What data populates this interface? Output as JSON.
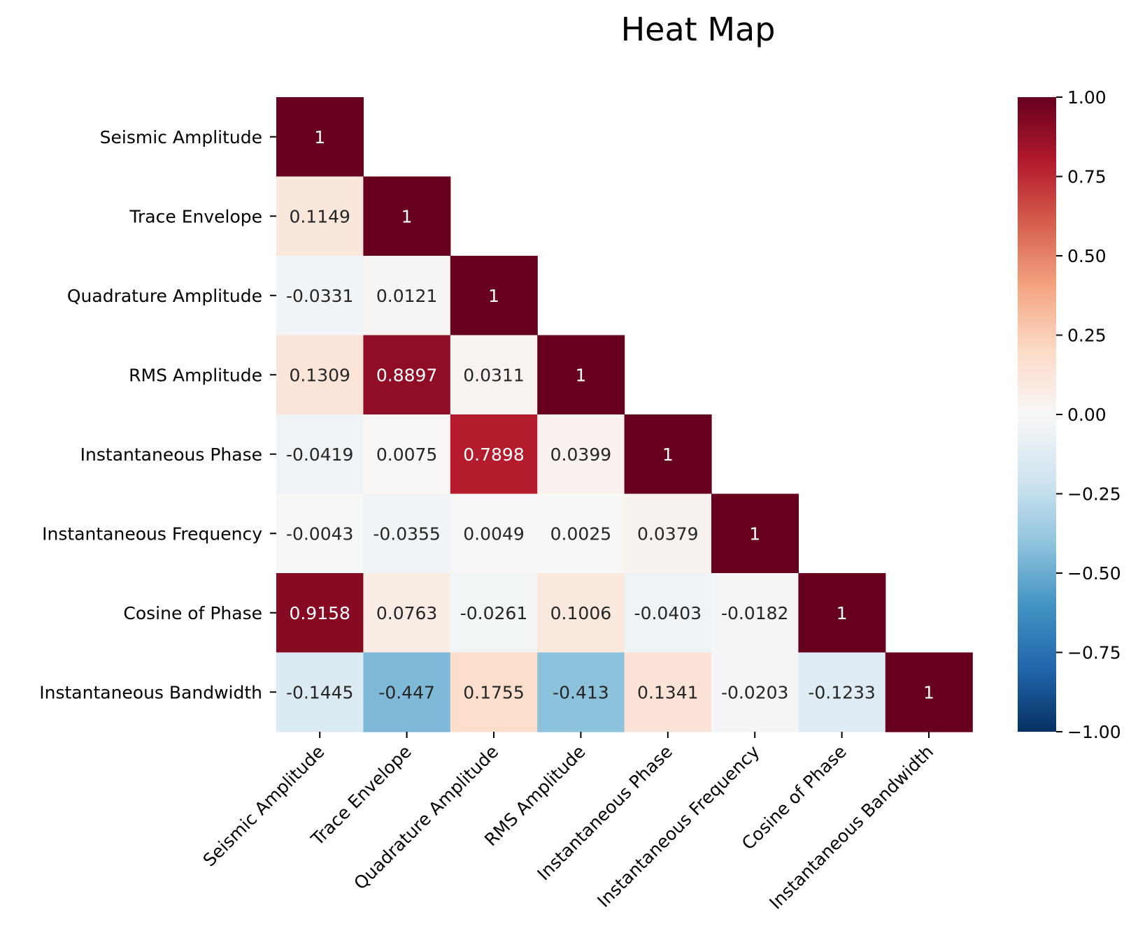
{
  "chart_data": {
    "type": "heatmap",
    "title": "Heat Map",
    "xlabel": "",
    "ylabel": "",
    "categories": [
      "Seismic Amplitude",
      "Trace Envelope",
      "Quadrature Amplitude",
      "RMS Amplitude",
      "Instantaneous Phase",
      "Instantaneous Frequency",
      "Cosine of Phase",
      "Instantaneous Bandwidth"
    ],
    "mask": "upper-triangle-hidden",
    "matrix": [
      [
        "1"
      ],
      [
        "0.1149",
        "1"
      ],
      [
        "-0.0331",
        "0.0121",
        "1"
      ],
      [
        "0.1309",
        "0.8897",
        "0.0311",
        "1"
      ],
      [
        "-0.0419",
        "0.0075",
        "0.7898",
        "0.0399",
        "1"
      ],
      [
        "-0.0043",
        "-0.0355",
        "0.0049",
        "0.0025",
        "0.0379",
        "1"
      ],
      [
        "0.9158",
        "0.0763",
        "-0.0261",
        "0.1006",
        "-0.0403",
        "-0.0182",
        "1"
      ],
      [
        "-0.1445",
        "-0.447",
        "0.1755",
        "-0.413",
        "0.1341",
        "-0.0203",
        "-0.1233",
        "1"
      ]
    ],
    "colorbar": {
      "colormap": "RdBu_r",
      "vmin": -1.0,
      "vmax": 1.0,
      "ticks": [
        1.0,
        0.75,
        0.5,
        0.25,
        0.0,
        -0.25,
        -0.5,
        -0.75,
        -1.0
      ],
      "tick_labels": [
        "1.00",
        "0.75",
        "0.50",
        "0.25",
        "0.00",
        "−0.25",
        "−0.50",
        "−0.75",
        "−1.00"
      ]
    },
    "grid": false
  }
}
